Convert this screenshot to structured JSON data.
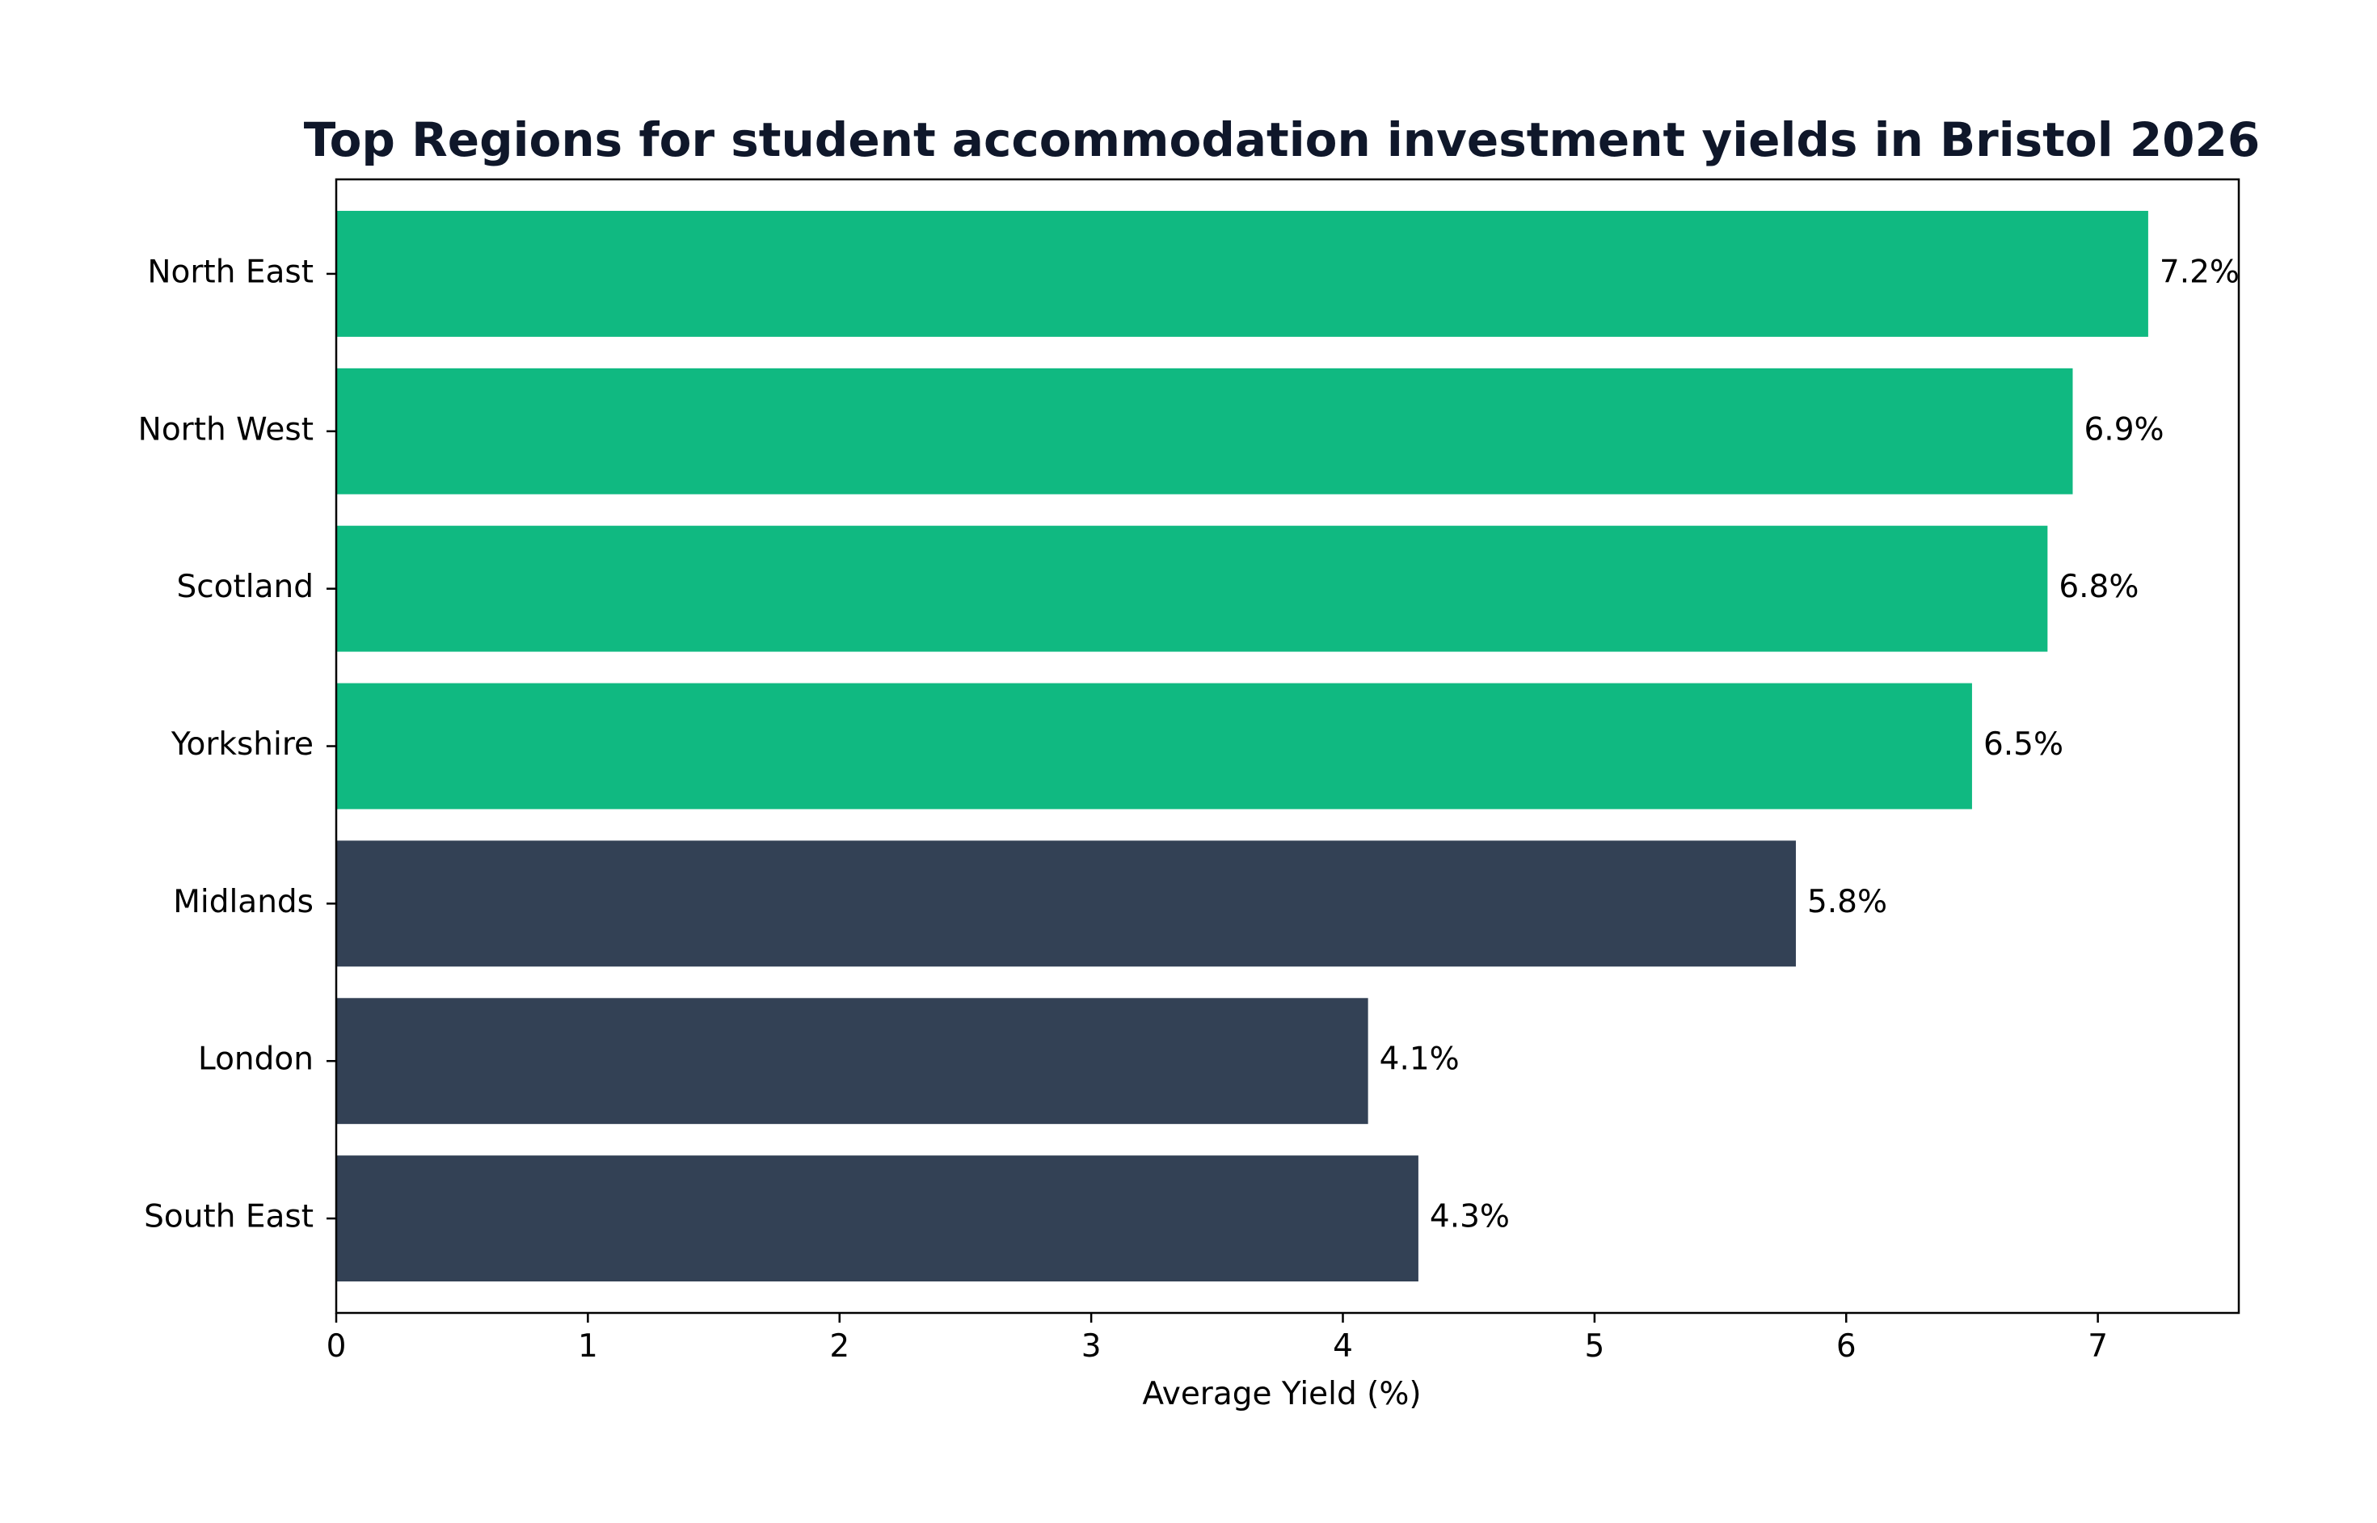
{
  "chart_data": {
    "type": "bar",
    "orientation": "horizontal",
    "title": "Top Regions for student accommodation investment yields in Bristol 2026",
    "xlabel": "Average Yield (%)",
    "ylabel": "",
    "categories": [
      "North East",
      "North West",
      "Scotland",
      "Yorkshire",
      "Midlands",
      "London",
      "South East"
    ],
    "values": [
      7.2,
      6.9,
      6.8,
      6.5,
      5.8,
      4.1,
      4.3
    ],
    "data_labels": [
      "7.2%",
      "6.9%",
      "6.8%",
      "6.5%",
      "5.8%",
      "4.1%",
      "4.3%"
    ],
    "highlight": [
      true,
      true,
      true,
      true,
      false,
      false,
      false
    ],
    "xlim": [
      0,
      7.56
    ],
    "xticks": [
      0,
      1,
      2,
      3,
      4,
      5,
      6,
      7
    ],
    "xtick_labels": [
      "0",
      "1",
      "2",
      "3",
      "4",
      "5",
      "6",
      "7"
    ],
    "grid": false,
    "legend": "none",
    "colors": {
      "highlight": "#10b981",
      "default": "#334155",
      "title": "#0f172a",
      "axis": "#000000"
    }
  }
}
